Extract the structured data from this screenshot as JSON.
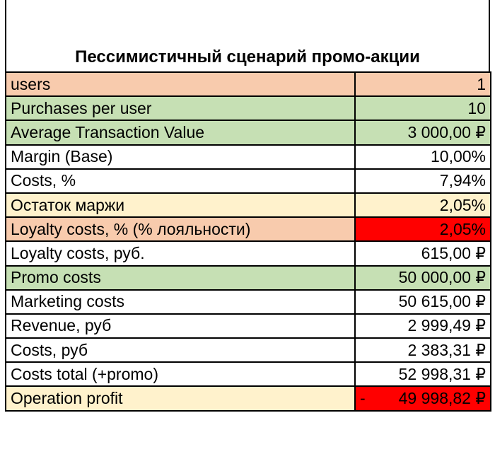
{
  "title": "Пессимистичный сценарий промо-акции",
  "rows": [
    {
      "label": "users",
      "value": "1"
    },
    {
      "label": "Purchases per user",
      "value": "10"
    },
    {
      "label": "Average Transaction Value",
      "value": "3 000,00 ₽"
    },
    {
      "label": "Margin (Base)",
      "value": "10,00%"
    },
    {
      "label": "Costs, %",
      "value": "7,94%"
    },
    {
      "label": "Остаток маржи",
      "value": "2,05%"
    },
    {
      "label": "Loyalty costs, % (% лояльности)",
      "value": "2,05%"
    },
    {
      "label": "Loyalty costs, руб.",
      "value": "615,00 ₽"
    },
    {
      "label": "Promo costs",
      "value": "50 000,00 ₽"
    },
    {
      "label": "Marketing costs",
      "value": "50 615,00 ₽"
    },
    {
      "label": "Revenue, руб",
      "value": "2 999,49 ₽"
    },
    {
      "label": "Costs, руб",
      "value": "2 383,31 ₽"
    },
    {
      "label": "Costs total (+promo)",
      "value": "52 998,31 ₽"
    },
    {
      "label": "Operation profit",
      "sign": "-",
      "value": "49 998,82 ₽"
    }
  ],
  "colors": {
    "salmon": "#f8cbad",
    "green": "#c6e0b4",
    "cream": "#fff2cc",
    "red": "#ff0000"
  }
}
